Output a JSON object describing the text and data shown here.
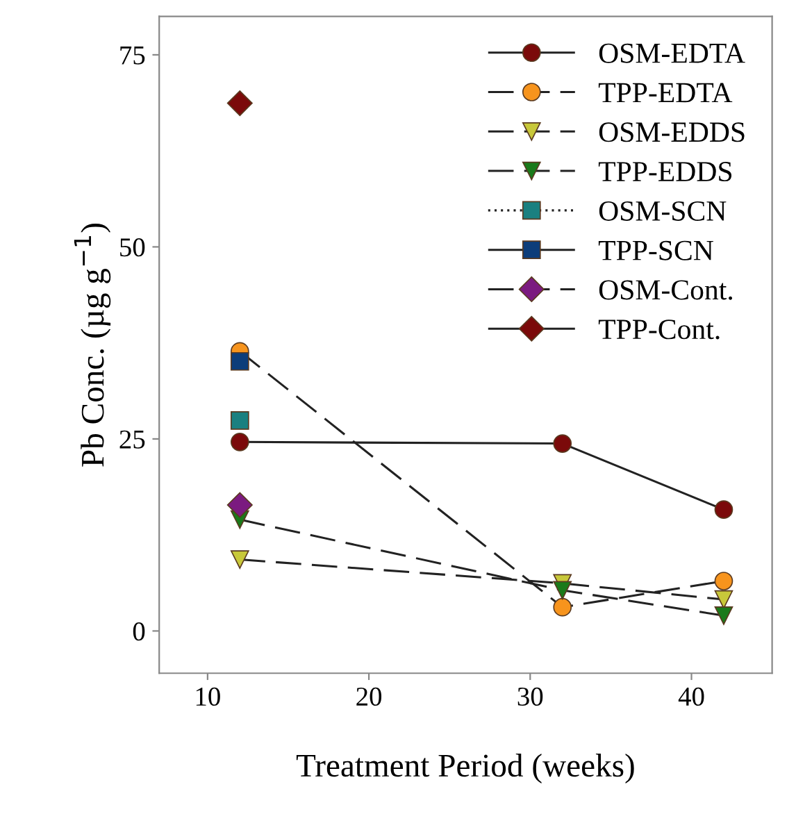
{
  "chart_data": {
    "type": "line",
    "xlabel": "Treatment Period (weeks)",
    "ylabel": "Pb Conc. (µg g$^{−1}$)",
    "x": [
      12,
      32,
      42
    ],
    "xlim": [
      7,
      45
    ],
    "xticks": [
      10,
      20,
      30,
      40
    ],
    "ylim": [
      -5.5,
      80
    ],
    "yticks": [
      0,
      25,
      50,
      75
    ],
    "grid": false,
    "legend": "top right",
    "series": [
      {
        "name": "OSM-EDTA",
        "color": "#7b0a0a",
        "marker": "circle",
        "line_style": "solid",
        "values": [
          24.6,
          24.4,
          15.8
        ]
      },
      {
        "name": "TPP-EDTA",
        "color": "#f7941d",
        "marker": "circle",
        "line_style": "dashed",
        "values": [
          36.4,
          3.1,
          6.5
        ]
      },
      {
        "name": "OSM-EDDS",
        "color": "#c8c83a",
        "marker": "triangle",
        "line_style": "dashed",
        "values": [
          9.3,
          6.2,
          4.1
        ]
      },
      {
        "name": "TPP-EDDS",
        "color": "#1a7a1a",
        "marker": "triangle",
        "line_style": "dashed",
        "values": [
          14.5,
          5.3,
          2.0
        ]
      },
      {
        "name": "OSM-SCN",
        "color": "#1a8080",
        "marker": "square",
        "line_style": "dotted",
        "values": [
          27.4,
          null,
          null
        ]
      },
      {
        "name": "TPP-SCN",
        "color": "#0d3d7a",
        "marker": "square",
        "line_style": "solid",
        "values": [
          35.1,
          null,
          null
        ]
      },
      {
        "name": "OSM-Cont.",
        "color": "#7b1a80",
        "marker": "diamond",
        "line_style": "dashed",
        "values": [
          16.4,
          null,
          null
        ]
      },
      {
        "name": "TPP-Cont.",
        "color": "#7b0a0a",
        "marker": "diamond",
        "line_style": "solid",
        "values": [
          68.7,
          null,
          null
        ]
      }
    ]
  }
}
